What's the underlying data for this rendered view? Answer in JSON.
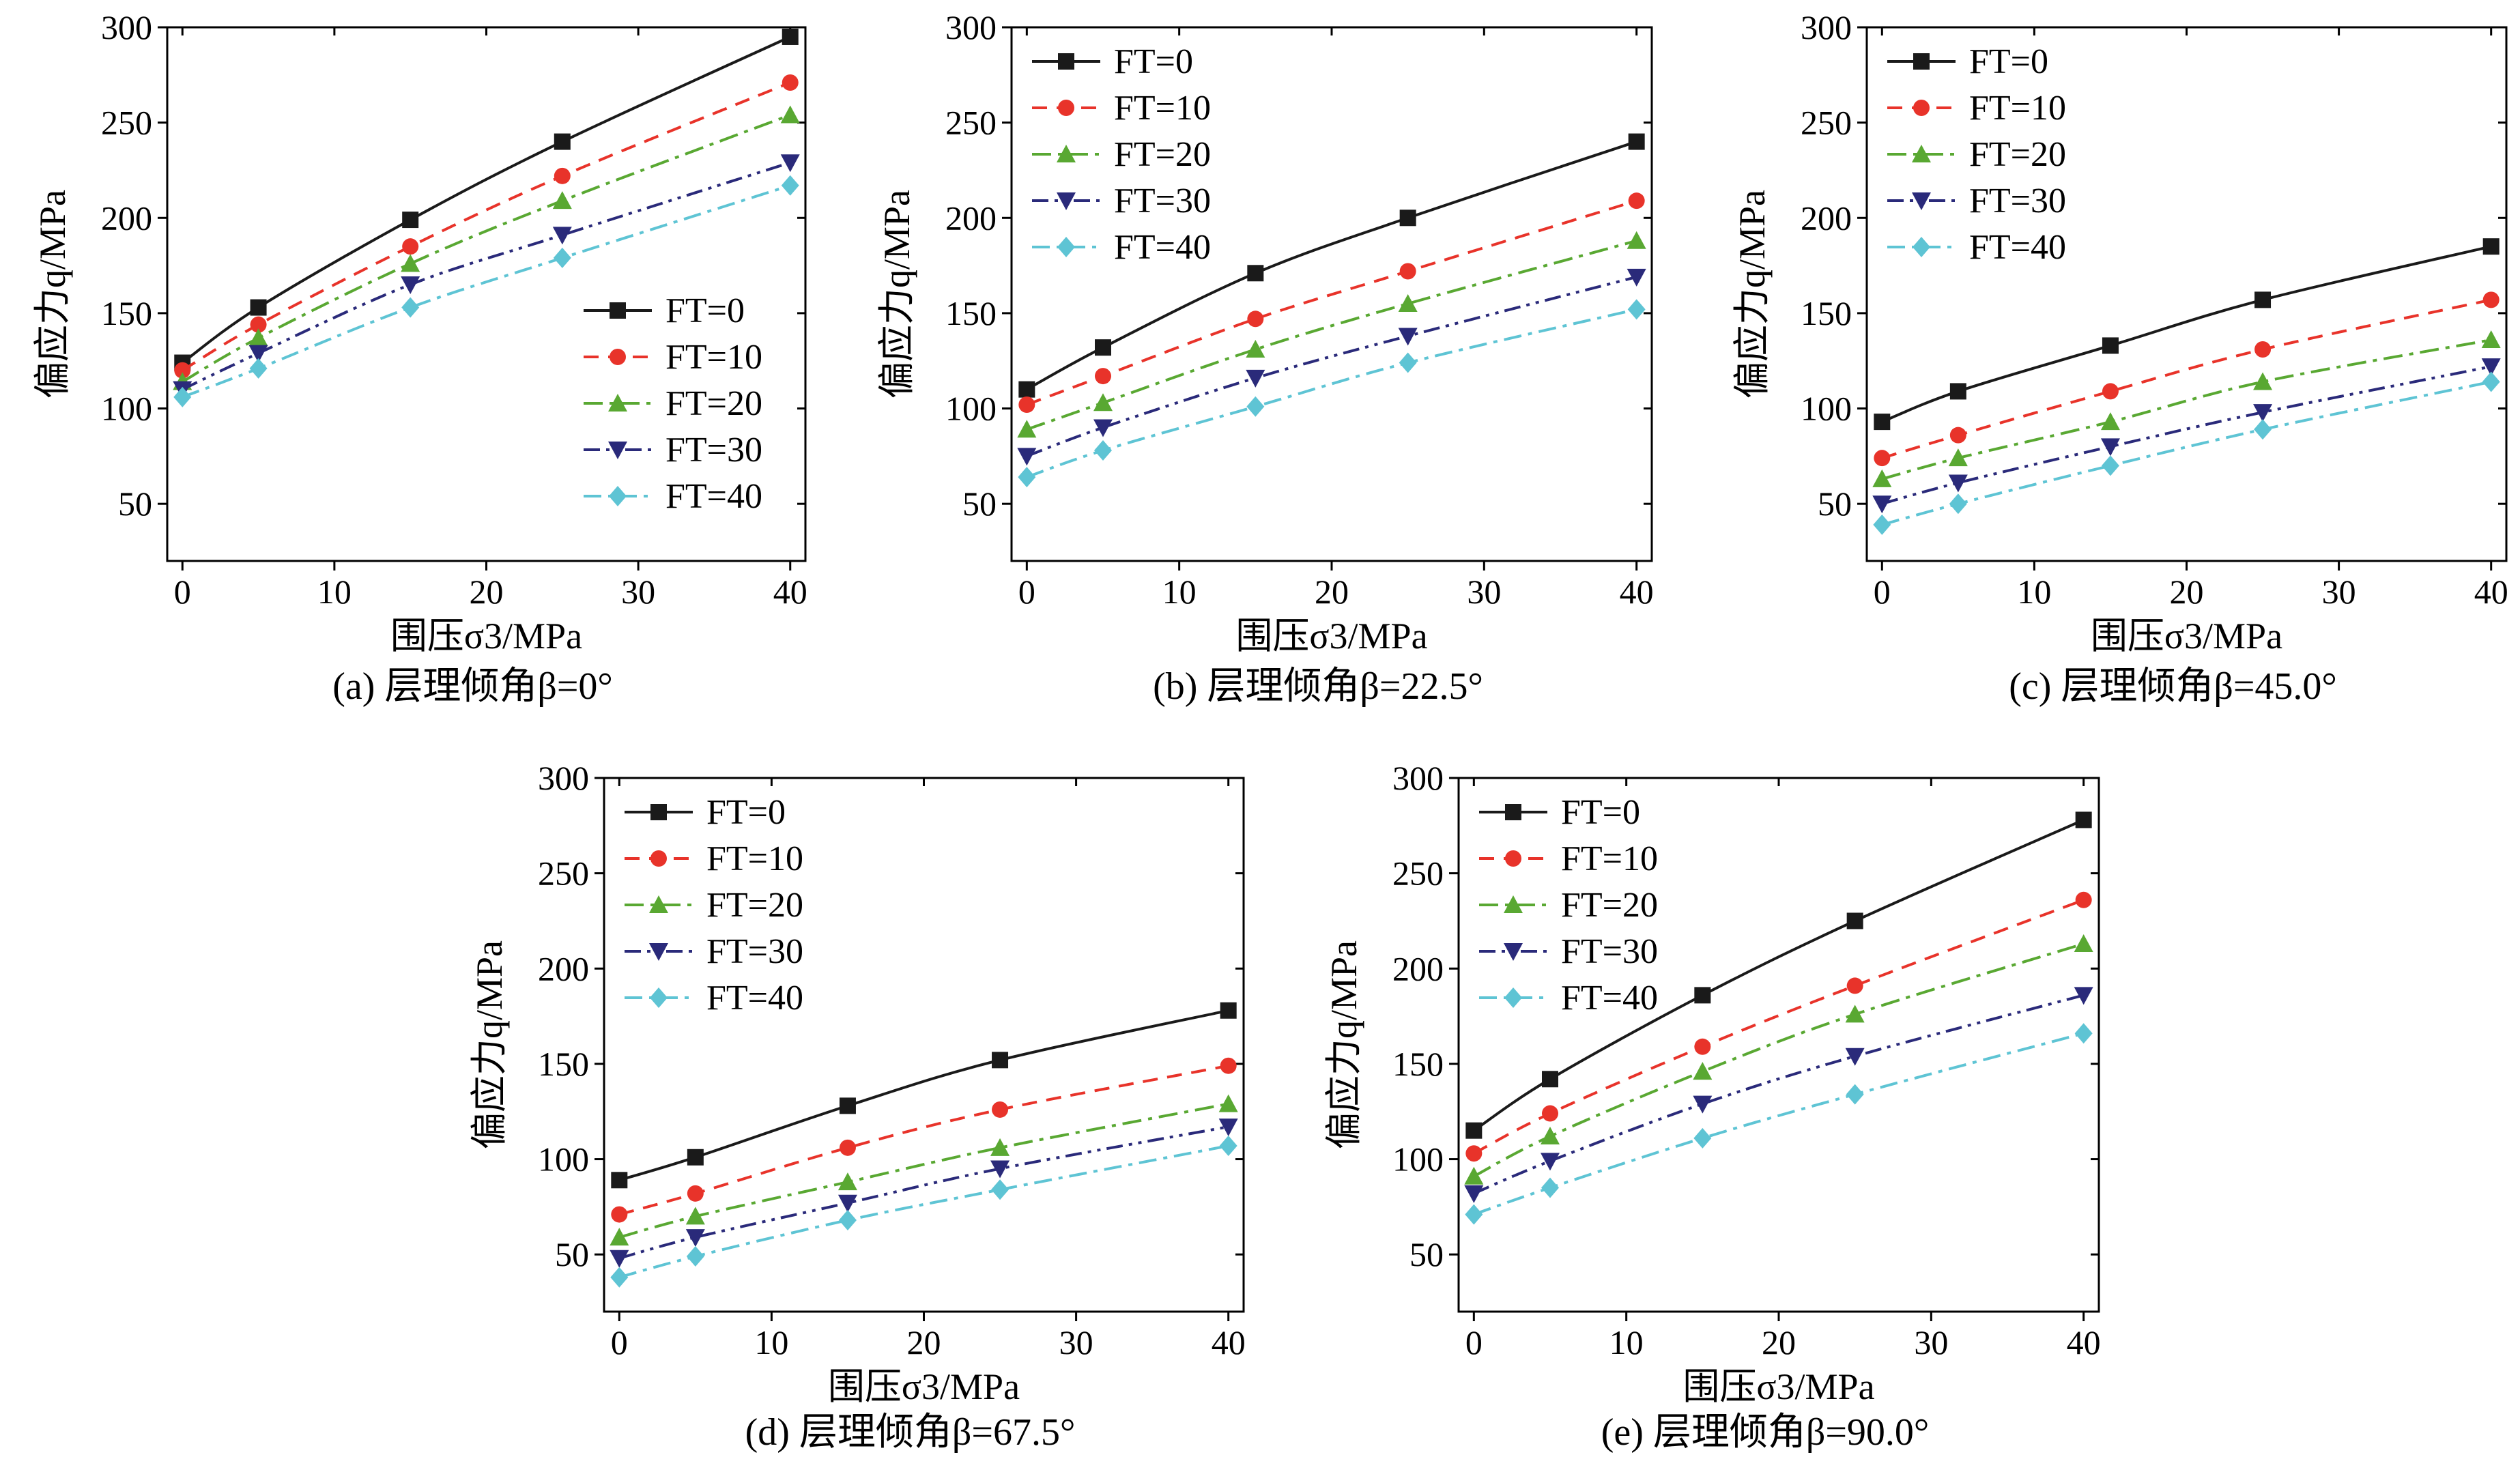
{
  "series_styles": [
    {
      "name": "FT=0",
      "color": "#1a1a1a",
      "dash": "",
      "marker": "square"
    },
    {
      "name": "FT=10",
      "color": "#e8332a",
      "dash": "22,14",
      "marker": "circle"
    },
    {
      "name": "FT=20",
      "color": "#59a832",
      "dash": "28,10,6,10",
      "marker": "triangle-up"
    },
    {
      "name": "FT=30",
      "color": "#2a2a7a",
      "dash": "24,9,5,9,5,9",
      "marker": "triangle-down"
    },
    {
      "name": "FT=40",
      "color": "#5ec4d4",
      "dash": "26,10,6,10",
      "marker": "diamond"
    }
  ],
  "chart_data": [
    {
      "type": "line",
      "caption": "(a) 层理倾角β=0°",
      "xlabel": "围压σ3/MPa",
      "ylabel": "偏应力q/MPa",
      "x": [
        0,
        5,
        15,
        25,
        40
      ],
      "xticks": [
        "0",
        "10",
        "20",
        "30",
        "40"
      ],
      "yticks": [
        "50",
        "100",
        "150",
        "200",
        "250",
        "300"
      ],
      "xlim": [
        -1,
        41
      ],
      "ylim": [
        20,
        300
      ],
      "legend_position": "lower-right",
      "series": [
        {
          "name": "FT=0",
          "values": [
            124,
            153,
            199,
            240,
            295
          ]
        },
        {
          "name": "FT=10",
          "values": [
            120,
            144,
            185,
            222,
            271
          ]
        },
        {
          "name": "FT=20",
          "values": [
            114,
            137,
            176,
            209,
            254
          ]
        },
        {
          "name": "FT=30",
          "values": [
            110,
            129,
            165,
            191,
            229
          ]
        },
        {
          "name": "FT=40",
          "values": [
            106,
            121,
            153,
            179,
            217
          ]
        }
      ]
    },
    {
      "type": "line",
      "caption": "(b) 层理倾角β=22.5°",
      "xlabel": "围压σ3/MPa",
      "ylabel": "偏应力q/MPa",
      "x": [
        0,
        5,
        15,
        25,
        40
      ],
      "xticks": [
        "0",
        "10",
        "20",
        "30",
        "40"
      ],
      "yticks": [
        "50",
        "100",
        "150",
        "200",
        "250",
        "300"
      ],
      "xlim": [
        -1,
        41
      ],
      "ylim": [
        20,
        300
      ],
      "legend_position": "upper-left",
      "series": [
        {
          "name": "FT=0",
          "values": [
            110,
            132,
            171,
            200,
            240
          ]
        },
        {
          "name": "FT=10",
          "values": [
            102,
            117,
            147,
            172,
            209
          ]
        },
        {
          "name": "FT=20",
          "values": [
            89,
            103,
            131,
            155,
            188
          ]
        },
        {
          "name": "FT=30",
          "values": [
            75,
            90,
            116,
            138,
            169
          ]
        },
        {
          "name": "FT=40",
          "values": [
            64,
            78,
            101,
            124,
            152
          ]
        }
      ]
    },
    {
      "type": "line",
      "caption": "(c) 层理倾角β=45.0°",
      "xlabel": "围压σ3/MPa",
      "ylabel": "偏应力q/MPa",
      "x": [
        0,
        5,
        15,
        25,
        40
      ],
      "xticks": [
        "0",
        "10",
        "20",
        "30",
        "40"
      ],
      "yticks": [
        "50",
        "100",
        "150",
        "200",
        "250",
        "300"
      ],
      "xlim": [
        -1,
        41
      ],
      "ylim": [
        20,
        300
      ],
      "legend_position": "upper-left",
      "series": [
        {
          "name": "FT=0",
          "values": [
            93,
            109,
            133,
            157,
            185
          ]
        },
        {
          "name": "FT=10",
          "values": [
            74,
            86,
            109,
            131,
            157
          ]
        },
        {
          "name": "FT=20",
          "values": [
            63,
            74,
            93,
            114,
            136
          ]
        },
        {
          "name": "FT=30",
          "values": [
            50,
            61,
            80,
            98,
            122
          ]
        },
        {
          "name": "FT=40",
          "values": [
            39,
            50,
            70,
            89,
            114
          ]
        }
      ]
    },
    {
      "type": "line",
      "caption": "(d) 层理倾角β=67.5°",
      "xlabel": "围压σ3/MPa",
      "ylabel": "偏应力q/MPa",
      "x": [
        0,
        5,
        15,
        25,
        40
      ],
      "xticks": [
        "0",
        "10",
        "20",
        "30",
        "40"
      ],
      "yticks": [
        "50",
        "100",
        "150",
        "200",
        "250",
        "300"
      ],
      "xlim": [
        -1,
        41
      ],
      "ylim": [
        20,
        300
      ],
      "legend_position": "upper-left",
      "series": [
        {
          "name": "FT=0",
          "values": [
            89,
            101,
            128,
            152,
            178
          ]
        },
        {
          "name": "FT=10",
          "values": [
            71,
            82,
            106,
            126,
            149
          ]
        },
        {
          "name": "FT=20",
          "values": [
            59,
            70,
            88,
            106,
            129
          ]
        },
        {
          "name": "FT=30",
          "values": [
            48,
            59,
            77,
            95,
            117
          ]
        },
        {
          "name": "FT=40",
          "values": [
            38,
            49,
            68,
            84,
            107
          ]
        }
      ]
    },
    {
      "type": "line",
      "caption": "(e) 层理倾角β=90.0°",
      "xlabel": "围压σ3/MPa",
      "ylabel": "偏应力q/MPa",
      "x": [
        0,
        5,
        15,
        25,
        40
      ],
      "xticks": [
        "0",
        "10",
        "20",
        "30",
        "40"
      ],
      "yticks": [
        "50",
        "100",
        "150",
        "200",
        "250",
        "300"
      ],
      "xlim": [
        -1,
        41
      ],
      "ylim": [
        20,
        300
      ],
      "legend_position": "upper-left",
      "series": [
        {
          "name": "FT=0",
          "values": [
            115,
            142,
            186,
            225,
            278
          ]
        },
        {
          "name": "FT=10",
          "values": [
            103,
            124,
            159,
            191,
            236
          ]
        },
        {
          "name": "FT=20",
          "values": [
            91,
            112,
            146,
            176,
            213
          ]
        },
        {
          "name": "FT=30",
          "values": [
            82,
            99,
            129,
            154,
            186
          ]
        },
        {
          "name": "FT=40",
          "values": [
            71,
            85,
            111,
            134,
            166
          ]
        }
      ]
    }
  ]
}
